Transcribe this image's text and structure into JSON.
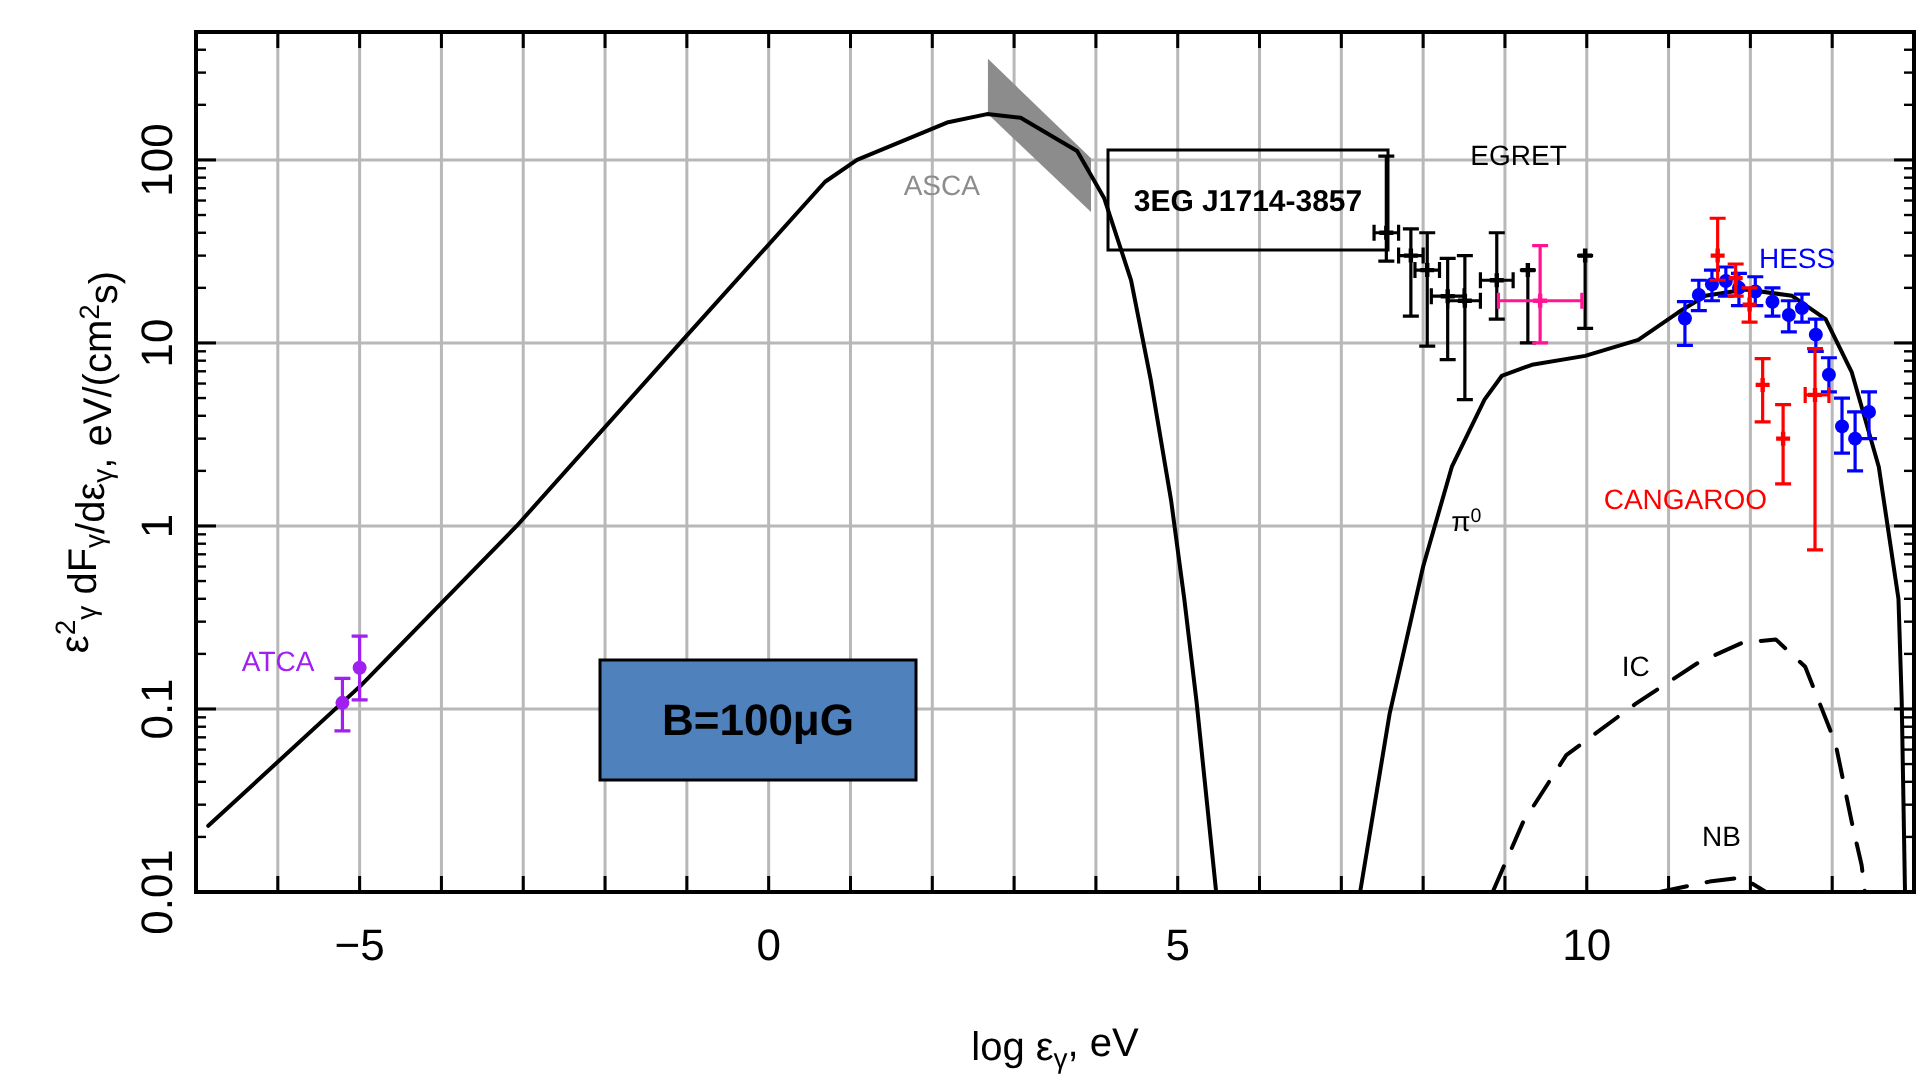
{
  "chart_data": {
    "type": "line",
    "xlabel": "log ε$_{γ}$, eV",
    "ylabel": "ε$^{2}$$_{γ}$ dF$_{γ}$/dε$_{γ}$,  eV/(cm$^{2}$s)",
    "xlim": [
      -7,
      14
    ],
    "ylim": [
      0.01,
      500
    ],
    "log": "y",
    "grid": true,
    "xticks": [
      {
        "value": -6,
        "label": null
      },
      -5,
      {
        "value": -4,
        "label": null
      },
      {
        "value": -3,
        "label": null
      },
      {
        "value": -2,
        "label": null
      },
      {
        "value": -1,
        "label": null
      },
      0,
      {
        "value": 1,
        "label": null
      },
      {
        "value": 2,
        "label": null
      },
      {
        "value": 3,
        "label": null
      },
      {
        "value": 4,
        "label": null
      },
      5,
      {
        "value": 6,
        "label": null
      },
      {
        "value": 7,
        "label": null
      },
      {
        "value": 8,
        "label": null
      },
      {
        "value": 9,
        "label": null
      },
      10,
      {
        "value": 11,
        "label": null
      },
      {
        "value": 12,
        "label": null
      },
      {
        "value": 13,
        "label": null
      }
    ],
    "yticks": [
      0.01,
      0.1,
      1,
      10,
      100
    ],
    "annotations": [
      "3EG J1714-3857",
      "B=100μG"
    ],
    "series": [
      {
        "color": "#000000",
        "line_style": "solid",
        "x": [
          -6.85,
          -4.98,
          -3.08,
          -1.04,
          0.69,
          1.08,
          2.18,
          2.67,
          3.08,
          3.77,
          4.1,
          4.43,
          4.67,
          4.92,
          5.08,
          5.23,
          5.47
        ],
        "values": [
          0.023,
          0.135,
          1,
          10.5,
          76,
          100,
          160,
          178,
          170,
          112,
          62,
          22,
          6.3,
          1.37,
          0.4,
          0.11,
          0.01
        ]
      },
      {
        "name": "π$^{0}$",
        "color": "#000000",
        "line_style": "solid",
        "x": [
          7.23,
          7.59,
          8.0,
          8.35,
          8.75,
          8.96,
          9.33,
          9.98,
          10.63,
          11.12,
          11.45,
          11.94,
          12.51,
          12.92,
          13.24,
          13.57,
          13.81,
          13.85,
          13.89
        ],
        "values": [
          0.01,
          0.094,
          0.6,
          2.1,
          4.9,
          6.6,
          7.6,
          8.5,
          10.4,
          14.7,
          18.1,
          19.6,
          18.1,
          13.5,
          6.9,
          2.1,
          0.4,
          0.11,
          0.01
        ]
      },
      {
        "name": "IC",
        "color": "#000000",
        "line_style": "dashed",
        "x": [
          8.85,
          9.22,
          9.75,
          10.6,
          11.37,
          11.9,
          12.31,
          12.67,
          13.04,
          13.24,
          13.36,
          13.4
        ],
        "values": [
          0.01,
          0.024,
          0.056,
          0.107,
          0.18,
          0.23,
          0.24,
          0.17,
          0.065,
          0.024,
          0.014,
          0.01
        ]
      },
      {
        "name": "NB",
        "color": "#000000",
        "line_style": "dashed",
        "x": [
          10.89,
          11.5,
          11.9,
          12.19
        ],
        "values": [
          0.01,
          0.0114,
          0.012,
          0.01
        ]
      },
      {
        "type": "area",
        "name": "ASCA",
        "color": "#8c8c8c",
        "x": [
          2.68,
          3.94
        ],
        "values": [
          null,
          null
        ],
        "upper": [
          357,
          102
        ],
        "lower": [
          178,
          52
        ]
      },
      {
        "type": "scatter",
        "name": "ATCA",
        "color": "#a020f0",
        "marker": "circle",
        "x": [
          -5.21,
          -5.0
        ],
        "values": [
          0.108,
          0.168
        ],
        "errors": [
          [
            0.076,
            0.147
          ],
          [
            0.112,
            0.25
          ]
        ]
      },
      {
        "type": "scatter",
        "name": "EGRET",
        "color": "#000000",
        "marker": "cross",
        "x": [
          7.55,
          7.85,
          8.05,
          8.3,
          8.51,
          8.9,
          9.28,
          9.98
        ],
        "values": [
          40,
          30,
          25,
          18,
          17,
          22,
          25,
          30
        ],
        "errors": [
          [
            28,
            105
          ],
          [
            14,
            42
          ],
          [
            9.6,
            40
          ],
          [
            8.1,
            29
          ],
          [
            4.9,
            30
          ],
          [
            13.5,
            40
          ],
          [
            10,
            25
          ],
          [
            12,
            30
          ]
        ],
        "xerrors": [
          [
            7.4,
            7.7
          ],
          [
            7.7,
            8.0
          ],
          [
            7.9,
            8.2
          ],
          [
            8.1,
            8.5
          ],
          [
            8.3,
            8.7
          ],
          [
            8.7,
            9.1
          ],
          null,
          null
        ]
      },
      {
        "type": "scatter",
        "color": "#ff1493",
        "marker": "cross",
        "x": [
          9.43
        ],
        "values": [
          17
        ],
        "errors": [
          [
            10,
            34
          ]
        ],
        "xerrors": [
          [
            8.92,
            9.94
          ]
        ]
      },
      {
        "type": "scatter",
        "name": "HESS",
        "color": "#0000ff",
        "marker": "circle",
        "x": [
          11.2,
          11.37,
          11.53,
          11.7,
          11.86,
          12.06,
          12.27,
          12.47,
          12.63,
          12.8,
          12.96,
          13.12,
          13.28,
          13.45
        ],
        "values": [
          13.6,
          18.3,
          20.9,
          21.8,
          20,
          19.1,
          16.8,
          14.2,
          15.5,
          11.1,
          6.7,
          3.5,
          3.0,
          4.2
        ],
        "errors": [
          [
            9.7,
            16.8
          ],
          [
            15,
            22
          ],
          [
            17,
            25
          ],
          [
            18,
            26
          ],
          [
            16,
            24
          ],
          [
            16,
            23
          ],
          [
            14,
            20
          ],
          [
            11.5,
            17
          ],
          [
            13,
            18.5
          ],
          [
            9,
            13.5
          ],
          [
            5.4,
            8.3
          ],
          [
            2.5,
            5.0
          ],
          [
            2.0,
            4.2
          ],
          [
            3.0,
            5.4
          ]
        ]
      },
      {
        "type": "scatter",
        "name": "CANGAROO",
        "color": "#ff0000",
        "marker": "cross",
        "x": [
          11.6,
          11.82,
          11.99,
          12.15,
          12.4,
          12.79
        ],
        "values": [
          30,
          22.6,
          16.2,
          5.9,
          3.0,
          5.2
        ],
        "errors": [
          [
            22,
            48
          ],
          [
            18,
            27
          ],
          [
            13,
            20
          ],
          [
            3.7,
            8.2
          ],
          [
            1.7,
            4.6
          ],
          [
            0.74,
            9.3
          ]
        ],
        "xerrors": [
          null,
          null,
          null,
          null,
          null,
          [
            12.67,
            12.96
          ]
        ]
      }
    ]
  }
}
